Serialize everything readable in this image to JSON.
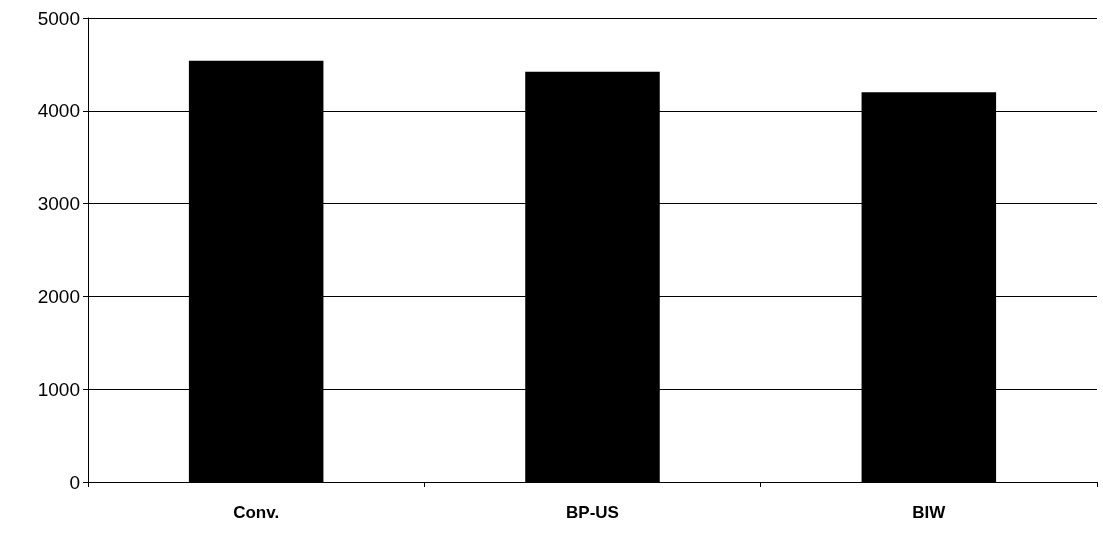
{
  "chart_data": {
    "type": "bar",
    "categories": [
      "Conv.",
      "BP-US",
      "BIW"
    ],
    "values": [
      4540,
      4420,
      4200
    ],
    "color": "#000000",
    "ylim": [
      0,
      5000
    ],
    "yticks": [
      0,
      1000,
      2000,
      3000,
      4000,
      5000
    ],
    "grid": "y"
  }
}
